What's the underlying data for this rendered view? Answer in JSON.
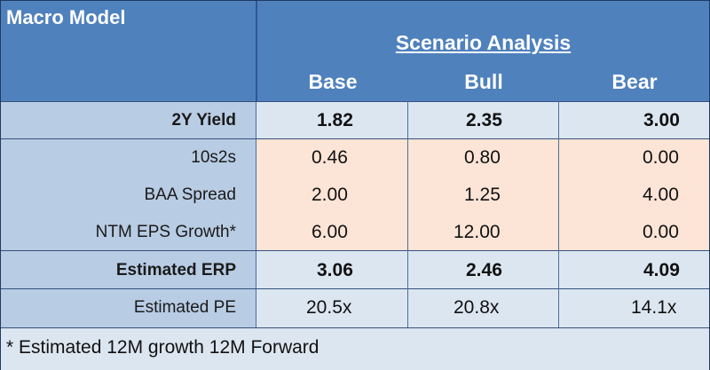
{
  "header": {
    "title": "Macro Model",
    "scenario_title": "Scenario Analysis",
    "columns": [
      "Base",
      "Bull",
      "Bear"
    ]
  },
  "rows": {
    "yield": {
      "label": "2Y Yield",
      "values": [
        "1.82",
        "2.35",
        "3.00"
      ]
    },
    "tens2s": {
      "label": "10s2s",
      "values": [
        "0.46",
        "0.80",
        "0.00"
      ]
    },
    "baa": {
      "label": "BAA Spread",
      "values": [
        "2.00",
        "1.25",
        "4.00"
      ]
    },
    "eps": {
      "label": "NTM EPS Growth*",
      "values": [
        "6.00",
        "12.00",
        "0.00"
      ]
    },
    "erp": {
      "label": "Estimated ERP",
      "values": [
        "3.06",
        "2.46",
        "4.09"
      ]
    },
    "pe": {
      "label": "Estimated PE",
      "values": [
        "20.5x",
        "20.8x",
        "14.1x"
      ]
    }
  },
  "footnote": "* Estimated 12M growth 12M Forward",
  "colors": {
    "header_bg": "#4f81bd",
    "label_bg": "#b8cce4",
    "highlight_bg": "#fce4d6",
    "light_bg": "#dce6f1"
  }
}
